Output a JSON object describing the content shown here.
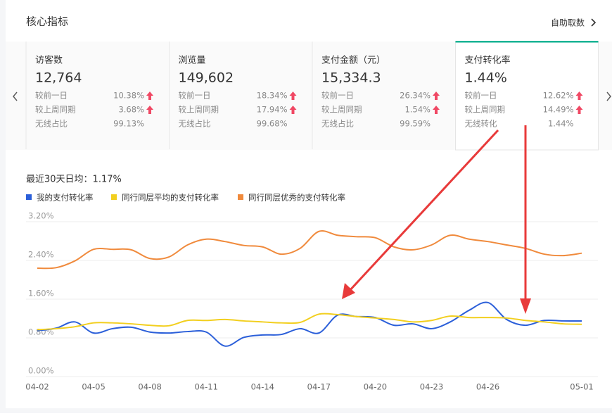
{
  "header": {
    "title": "核心指标",
    "link": "自助取数"
  },
  "metrics": [
    {
      "name": "访客数",
      "value": "12,764",
      "rows": [
        {
          "label": "较前一日",
          "value": "10.38%",
          "trend": "up"
        },
        {
          "label": "较上周同期",
          "value": "3.68%",
          "trend": "up"
        },
        {
          "label": "无线占比",
          "value": "99.13%"
        }
      ]
    },
    {
      "name": "浏览量",
      "value": "149,602",
      "rows": [
        {
          "label": "较前一日",
          "value": "18.34%",
          "trend": "up"
        },
        {
          "label": "较上周同期",
          "value": "17.94%",
          "trend": "up"
        },
        {
          "label": "无线占比",
          "value": "99.68%"
        }
      ]
    },
    {
      "name": "支付金额（元）",
      "value": "15,334.3",
      "rows": [
        {
          "label": "较前一日",
          "value": "26.34%",
          "trend": "up"
        },
        {
          "label": "较上周同期",
          "value": "1.54%",
          "trend": "up"
        },
        {
          "label": "无线占比",
          "value": "99.59%"
        }
      ]
    },
    {
      "name": "支付转化率",
      "value": "1.44%",
      "active": true,
      "rows": [
        {
          "label": "较前一日",
          "value": "12.62%",
          "trend": "up"
        },
        {
          "label": "较上周同期",
          "value": "14.49%",
          "trend": "up"
        },
        {
          "label": "无线转化",
          "value": "1.44%"
        }
      ]
    }
  ],
  "summary": "最近30天日均：1.17%",
  "chart_data": {
    "type": "line",
    "categories": [
      "04-02",
      null,
      null,
      "04-05",
      null,
      null,
      "04-08",
      null,
      null,
      "04-11",
      null,
      null,
      "04-14",
      null,
      null,
      "04-17",
      null,
      null,
      "04-20",
      null,
      null,
      "04-23",
      null,
      null,
      "04-26",
      null,
      null,
      null,
      null,
      "05-01"
    ],
    "series": [
      {
        "name": "我的支付转化率",
        "color": "#2b5fd9",
        "values": [
          0.95,
          1.0,
          1.13,
          0.9,
          0.99,
          1.02,
          0.92,
          0.9,
          0.93,
          0.92,
          0.63,
          0.81,
          0.86,
          0.87,
          0.99,
          0.9,
          1.27,
          1.24,
          1.22,
          1.06,
          1.09,
          0.99,
          1.13,
          1.37,
          1.53,
          1.18,
          1.06,
          1.16,
          1.15,
          1.15
        ]
      },
      {
        "name": "同行同层平均的支付转化率",
        "color": "#f2cf1f",
        "values": [
          0.97,
          0.99,
          1.03,
          1.11,
          1.11,
          1.09,
          1.06,
          1.05,
          1.16,
          1.16,
          1.18,
          1.15,
          1.13,
          1.11,
          1.12,
          1.29,
          1.28,
          1.24,
          1.21,
          1.18,
          1.13,
          1.16,
          1.25,
          1.22,
          1.22,
          1.21,
          1.16,
          1.13,
          1.09,
          1.08
        ]
      },
      {
        "name": "同行同层优秀的支付转化率",
        "color": "#f08a3c",
        "values": [
          2.24,
          2.25,
          2.39,
          2.63,
          2.63,
          2.62,
          2.44,
          2.47,
          2.72,
          2.84,
          2.79,
          2.71,
          2.68,
          2.53,
          2.65,
          3.0,
          2.92,
          2.89,
          2.87,
          2.68,
          2.62,
          2.72,
          2.92,
          2.84,
          2.79,
          2.72,
          2.65,
          2.53,
          2.5,
          2.55
        ]
      }
    ],
    "ylim": [
      0,
      3.2
    ],
    "yticks": [
      {
        "value": 0,
        "label": "0.00%"
      },
      {
        "value": 0.8,
        "label": "0.80%"
      },
      {
        "value": 1.6,
        "label": "1.60%"
      },
      {
        "value": 2.4,
        "label": "2.40%"
      },
      {
        "value": 3.2,
        "label": "3.20%"
      }
    ],
    "grid": true
  }
}
